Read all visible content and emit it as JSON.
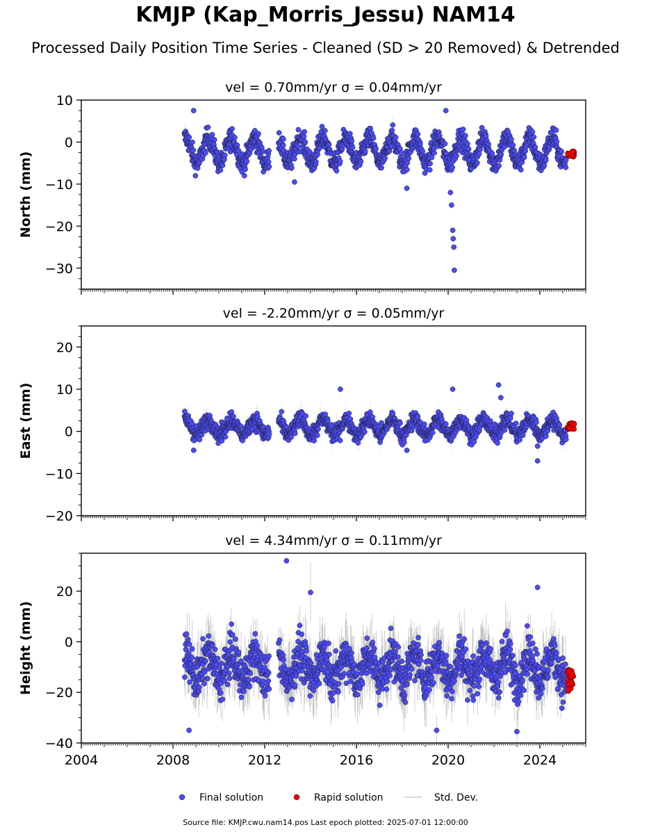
{
  "title": "KMJP (Kap_Morris_Jessu) NAM14",
  "subtitle": "Processed Daily Position Time Series - Cleaned (SD > 20 Removed) & Detrended",
  "footer": "Source file: KMJP.cwu.nam14.pos  Last epoch plotted: 2025-07-01 12:00:00",
  "legend": [
    {
      "label": "Final solution",
      "color": "#4b4bf5",
      "marker": "circle"
    },
    {
      "label": "Rapid solution",
      "color": "#ee0000",
      "marker": "circle"
    },
    {
      "label": "Std. Dev.",
      "color": "#cccccc",
      "marker": "line"
    }
  ],
  "chart_data": [
    {
      "type": "scatter",
      "title": "vel = 0.70mm/yr   σ = 0.04mm/yr",
      "ylabel": "North (mm)",
      "ylim": [
        -35,
        10
      ],
      "xlim": [
        2004,
        2026
      ],
      "yticks": [
        10,
        0,
        -10,
        -20,
        -30
      ],
      "xticks": [],
      "grid": false,
      "final_solution": {
        "x_range": [
          2008.5,
          2025.15
        ],
        "gaps": [
          [
            2012.2,
            2012.6
          ]
        ],
        "mean": -2,
        "amp": 3,
        "noise": 1.8,
        "outliers": [
          {
            "x": 2008.9,
            "y": 7.5
          },
          {
            "x": 2013.3,
            "y": -9.5
          },
          {
            "x": 2018.2,
            "y": -11
          },
          {
            "x": 2019.9,
            "y": 7.5
          },
          {
            "x": 2020.1,
            "y": -12
          },
          {
            "x": 2020.15,
            "y": -15
          },
          {
            "x": 2020.2,
            "y": -21
          },
          {
            "x": 2020.22,
            "y": -23
          },
          {
            "x": 2020.25,
            "y": -25
          },
          {
            "x": 2020.27,
            "y": -30.5
          }
        ]
      },
      "rapid_solution": {
        "x_range": [
          2025.2,
          2025.5
        ],
        "y_range": [
          -3.5,
          -2
        ]
      },
      "std_dev_typical": 1.5
    },
    {
      "type": "scatter",
      "title": "vel = -2.20mm/yr   σ = 0.05mm/yr",
      "ylabel": "East (mm)",
      "ylim": [
        -20,
        25
      ],
      "xlim": [
        2004,
        2026
      ],
      "yticks": [
        20,
        10,
        0,
        -10,
        -20
      ],
      "xticks": [],
      "grid": false,
      "final_solution": {
        "x_range": [
          2008.5,
          2025.15
        ],
        "gaps": [
          [
            2012.2,
            2012.6
          ]
        ],
        "mean": 1,
        "amp": 1.8,
        "noise": 1.4,
        "outliers": [
          {
            "x": 2008.9,
            "y": -4.5
          },
          {
            "x": 2015.3,
            "y": 10
          },
          {
            "x": 2018.2,
            "y": -4.5
          },
          {
            "x": 2020.2,
            "y": 10
          },
          {
            "x": 2022.2,
            "y": 11
          },
          {
            "x": 2022.3,
            "y": 8
          },
          {
            "x": 2023.9,
            "y": -7
          },
          {
            "x": 2023.9,
            "y": -3.5
          }
        ]
      },
      "rapid_solution": {
        "x_range": [
          2025.2,
          2025.5
        ],
        "y_range": [
          0.5,
          2
        ]
      },
      "std_dev_typical": 2
    },
    {
      "type": "scatter",
      "title": "vel = 4.34mm/yr   σ = 0.11mm/yr",
      "ylabel": "Height (mm)",
      "ylim": [
        -40,
        35
      ],
      "xlim": [
        2004,
        2026
      ],
      "yticks": [
        20,
        0,
        -20,
        -40
      ],
      "xticks": [
        "2004",
        "2008",
        "2012",
        "2016",
        "2020",
        "2024"
      ],
      "grid": false,
      "final_solution": {
        "x_range": [
          2008.5,
          2025.15
        ],
        "gaps": [
          [
            2012.2,
            2012.6
          ]
        ],
        "mean": -10,
        "amp": 5,
        "noise": 6,
        "outliers": [
          {
            "x": 2012.95,
            "y": 32
          },
          {
            "x": 2014.0,
            "y": 19.5
          },
          {
            "x": 2023.9,
            "y": 21.5
          },
          {
            "x": 2019.5,
            "y": -35
          },
          {
            "x": 2008.7,
            "y": -35
          },
          {
            "x": 2023.0,
            "y": -35.5
          }
        ]
      },
      "rapid_solution": {
        "x_range": [
          2025.2,
          2025.5
        ],
        "y_range": [
          -20,
          -11
        ]
      },
      "std_dev_typical": 9
    }
  ]
}
